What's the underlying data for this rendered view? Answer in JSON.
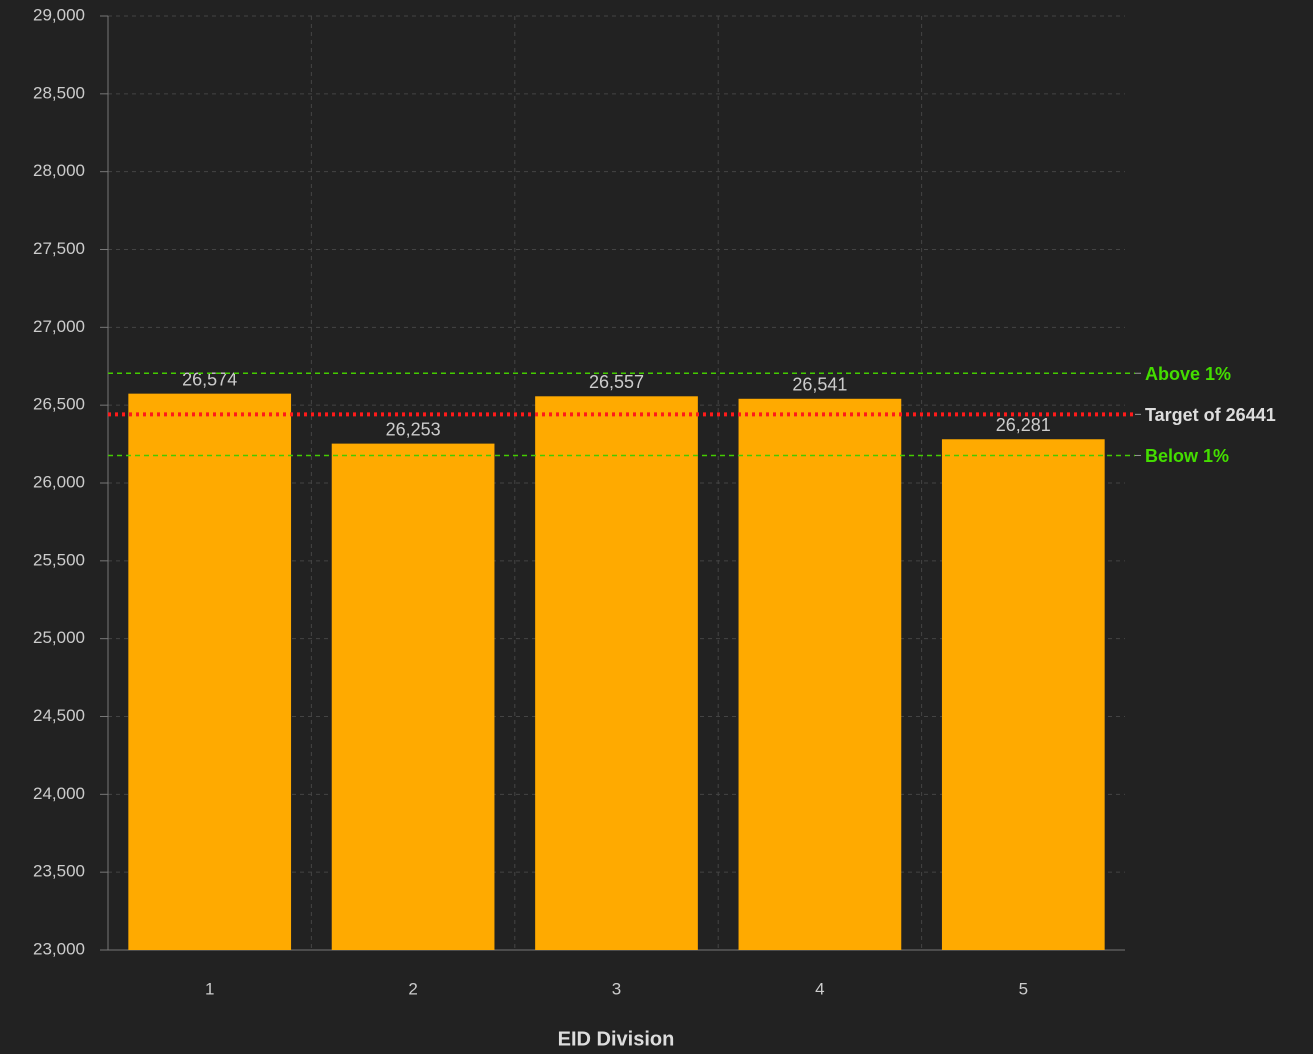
{
  "chart_data": {
    "type": "bar",
    "x_label": "EID Division",
    "categories": [
      "1",
      "2",
      "3",
      "4",
      "5"
    ],
    "values": [
      26574,
      26253,
      26557,
      26541,
      26281
    ],
    "value_labels": [
      "26,574",
      "26,253",
      "26,557",
      "26,541",
      "26,281"
    ],
    "color": "#ffaa00",
    "ylim": [
      23000,
      29000
    ],
    "yticks": [
      {
        "value": 23000,
        "label": "23,000"
      },
      {
        "value": 23500,
        "label": "23,500"
      },
      {
        "value": 24000,
        "label": "24,000"
      },
      {
        "value": 24500,
        "label": "24,500"
      },
      {
        "value": 25000,
        "label": "25,000"
      },
      {
        "value": 25500,
        "label": "25,500"
      },
      {
        "value": 26000,
        "label": "26,000"
      },
      {
        "value": 26500,
        "label": "26,500"
      },
      {
        "value": 27000,
        "label": "27,000"
      },
      {
        "value": 27500,
        "label": "27,500"
      },
      {
        "value": 28000,
        "label": "28,000"
      },
      {
        "value": 28500,
        "label": "28,500"
      },
      {
        "value": 29000,
        "label": "29,000"
      }
    ],
    "grid": true,
    "reference_lines": [
      {
        "label": "Above 1%",
        "value": 26705,
        "color": "#44cc00",
        "label_color": "#44dd00",
        "style": "dashed"
      },
      {
        "label": "Target of 26441",
        "value": 26441,
        "color": "#ff1a1a",
        "label_color": "#dddddd",
        "style": "dotted"
      },
      {
        "label": "Below 1%",
        "value": 26177,
        "color": "#44cc00",
        "label_color": "#44dd00",
        "style": "dashed"
      }
    ]
  }
}
